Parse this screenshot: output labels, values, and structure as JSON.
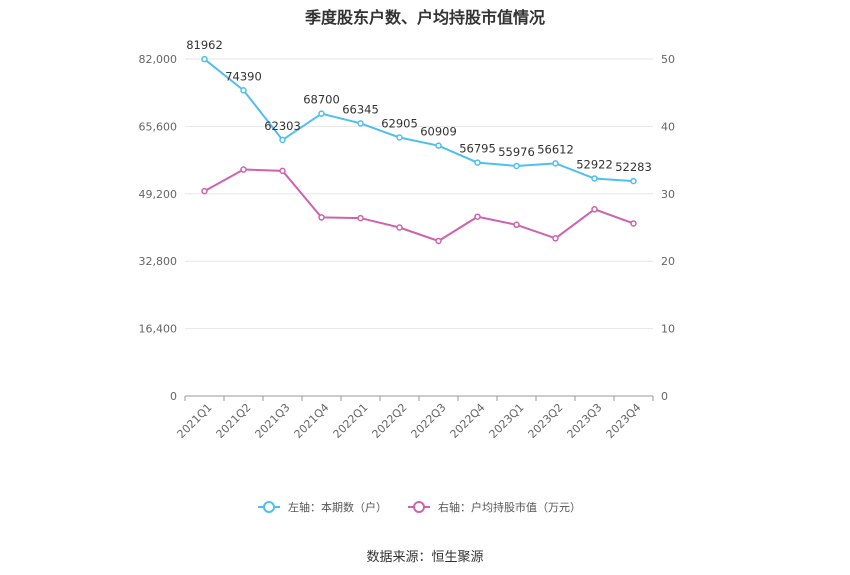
{
  "title": "季度股东户数、户均持股市值情况",
  "source": "数据来源：恒生聚源",
  "colors": {
    "left_series": "#4fbfef",
    "right_series": "#cf62b0",
    "grid": "#e6e6e6",
    "axis": "#999999"
  },
  "chart_data": {
    "type": "line",
    "categories": [
      "2021Q1",
      "2021Q2",
      "2021Q3",
      "2021Q4",
      "2022Q1",
      "2022Q2",
      "2022Q3",
      "2022Q4",
      "2023Q1",
      "2023Q2",
      "2023Q3",
      "2023Q4"
    ],
    "y_left": {
      "range": [
        0,
        82000
      ],
      "ticks": [
        0,
        16400,
        32800,
        49200,
        65600,
        82000
      ],
      "tick_labels": [
        "0",
        "16,400",
        "32,800",
        "49,200",
        "65,600",
        "82,000"
      ]
    },
    "y_right": {
      "range": [
        0,
        50
      ],
      "ticks": [
        0,
        10,
        20,
        30,
        40,
        50
      ],
      "tick_labels": [
        "0",
        "10",
        "20",
        "30",
        "40",
        "50"
      ]
    },
    "grid": true,
    "legend_position": "bottom",
    "series": [
      {
        "name": "左轴：本期数（户）",
        "axis": "left",
        "values": [
          81962,
          74390,
          62303,
          68700,
          66345,
          62905,
          60909,
          56795,
          55976,
          56612,
          52922,
          52283
        ],
        "labels": [
          "81962",
          "74390",
          "62303",
          "68700",
          "66345",
          "62905",
          "60909",
          "56795",
          "55976",
          "56612",
          "52922",
          "52283"
        ]
      },
      {
        "name": "右轴：户均持股市值（万元）",
        "axis": "right",
        "values": [
          30.4,
          33.6,
          33.4,
          26.5,
          26.4,
          25.0,
          23.0,
          26.6,
          25.4,
          23.4,
          27.7,
          25.6
        ]
      }
    ]
  }
}
